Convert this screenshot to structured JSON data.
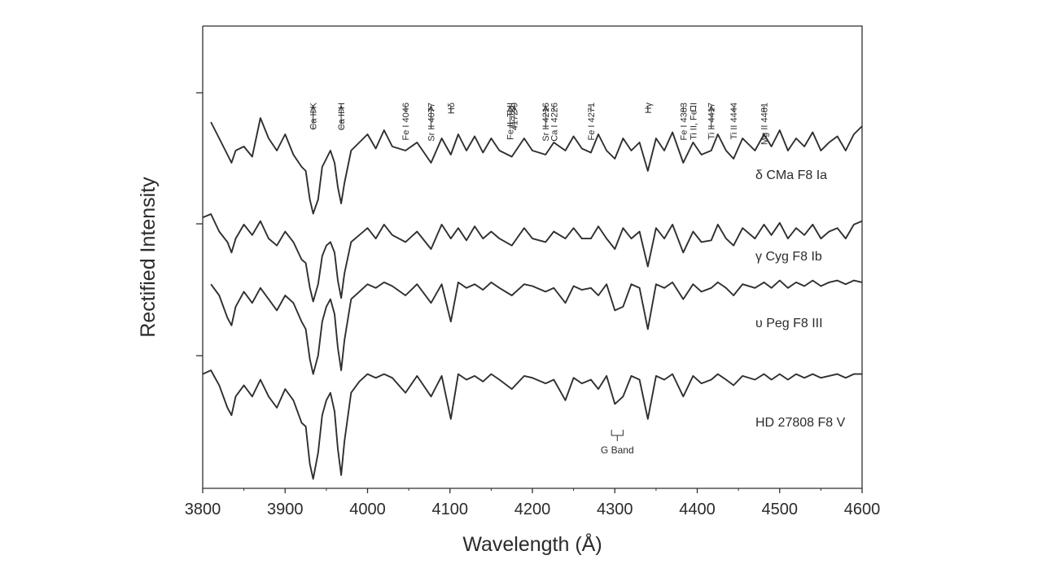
{
  "chart_data": {
    "type": "line",
    "title": "",
    "xlabel": "Wavelength (Å)",
    "ylabel": "Rectified Intensity",
    "xlim": [
      3800,
      4600
    ],
    "xticks": [
      3800,
      3900,
      4000,
      4100,
      4200,
      4300,
      4400,
      4500,
      4600
    ],
    "grid": false,
    "legend": "none",
    "line_color": "#2f2f2f",
    "series": [
      {
        "name": "δ CMa F8 Ia",
        "x": [
          3810,
          3820,
          3830,
          3835,
          3840,
          3850,
          3860,
          3870,
          3880,
          3890,
          3900,
          3910,
          3920,
          3925,
          3930,
          3934,
          3940,
          3945,
          3950,
          3955,
          3960,
          3964,
          3968,
          3972,
          3980,
          3990,
          4000,
          4010,
          4020,
          4030,
          4046,
          4060,
          4077,
          4090,
          4101,
          4110,
          4120,
          4130,
          4140,
          4150,
          4160,
          4175,
          4190,
          4200,
          4216,
          4226,
          4240,
          4250,
          4260,
          4271,
          4280,
          4290,
          4300,
          4310,
          4320,
          4330,
          4340,
          4350,
          4360,
          4370,
          4383,
          4395,
          4405,
          4417,
          4425,
          4435,
          4444,
          4455,
          4470,
          4481,
          4490,
          4500,
          4510,
          4520,
          4530,
          4540,
          4550,
          4560,
          4570,
          4580,
          4590,
          4600
        ],
        "y": [
          1.0,
          0.92,
          0.84,
          0.8,
          0.86,
          0.88,
          0.83,
          1.02,
          0.92,
          0.86,
          0.94,
          0.84,
          0.78,
          0.76,
          0.62,
          0.55,
          0.62,
          0.78,
          0.82,
          0.86,
          0.8,
          0.68,
          0.6,
          0.7,
          0.86,
          0.9,
          0.94,
          0.87,
          0.96,
          0.88,
          0.86,
          0.9,
          0.8,
          0.92,
          0.84,
          0.94,
          0.86,
          0.93,
          0.85,
          0.92,
          0.86,
          0.83,
          0.92,
          0.86,
          0.84,
          0.9,
          0.86,
          0.93,
          0.87,
          0.85,
          0.94,
          0.86,
          0.82,
          0.92,
          0.86,
          0.9,
          0.76,
          0.92,
          0.86,
          0.95,
          0.8,
          0.9,
          0.84,
          0.86,
          0.94,
          0.86,
          0.82,
          0.92,
          0.86,
          0.94,
          0.88,
          0.96,
          0.86,
          0.92,
          0.88,
          0.95,
          0.86,
          0.9,
          0.93,
          0.86,
          0.94,
          0.98
        ]
      },
      {
        "name": "γ Cyg F8 Ib",
        "x": [
          3800,
          3810,
          3820,
          3830,
          3835,
          3840,
          3850,
          3860,
          3870,
          3880,
          3890,
          3900,
          3910,
          3920,
          3925,
          3930,
          3934,
          3940,
          3945,
          3950,
          3955,
          3960,
          3964,
          3968,
          3972,
          3980,
          3990,
          4000,
          4010,
          4020,
          4030,
          4046,
          4060,
          4077,
          4090,
          4101,
          4110,
          4120,
          4130,
          4140,
          4150,
          4160,
          4175,
          4190,
          4200,
          4216,
          4226,
          4240,
          4250,
          4260,
          4271,
          4280,
          4290,
          4300,
          4310,
          4320,
          4330,
          4340,
          4350,
          4360,
          4370,
          4383,
          4395,
          4405,
          4417,
          4425,
          4435,
          4444,
          4455,
          4470,
          4481,
          4490,
          4500,
          4510,
          4520,
          4530,
          4540,
          4550,
          4560,
          4570,
          4580,
          4590,
          4600
        ],
        "y": [
          0.98,
          1.0,
          0.9,
          0.84,
          0.78,
          0.86,
          0.94,
          0.88,
          0.96,
          0.86,
          0.82,
          0.9,
          0.84,
          0.74,
          0.72,
          0.58,
          0.5,
          0.6,
          0.76,
          0.82,
          0.84,
          0.78,
          0.62,
          0.52,
          0.66,
          0.84,
          0.88,
          0.92,
          0.86,
          0.94,
          0.88,
          0.84,
          0.9,
          0.8,
          0.94,
          0.86,
          0.92,
          0.85,
          0.93,
          0.86,
          0.9,
          0.86,
          0.82,
          0.92,
          0.86,
          0.84,
          0.9,
          0.86,
          0.92,
          0.86,
          0.86,
          0.93,
          0.86,
          0.8,
          0.92,
          0.86,
          0.9,
          0.7,
          0.92,
          0.86,
          0.94,
          0.78,
          0.9,
          0.84,
          0.85,
          0.94,
          0.86,
          0.82,
          0.92,
          0.86,
          0.94,
          0.88,
          0.95,
          0.86,
          0.92,
          0.88,
          0.94,
          0.86,
          0.9,
          0.92,
          0.86,
          0.94,
          0.96
        ]
      },
      {
        "name": "υ Peg F8 III",
        "x": [
          3810,
          3820,
          3830,
          3835,
          3840,
          3850,
          3860,
          3870,
          3880,
          3890,
          3900,
          3910,
          3920,
          3925,
          3930,
          3934,
          3940,
          3945,
          3950,
          3955,
          3960,
          3964,
          3968,
          3972,
          3980,
          3990,
          4000,
          4010,
          4020,
          4030,
          4046,
          4060,
          4077,
          4090,
          4101,
          4110,
          4120,
          4130,
          4140,
          4150,
          4160,
          4175,
          4190,
          4200,
          4216,
          4226,
          4240,
          4250,
          4260,
          4271,
          4280,
          4290,
          4300,
          4310,
          4320,
          4330,
          4340,
          4350,
          4360,
          4370,
          4383,
          4395,
          4405,
          4417,
          4425,
          4435,
          4444,
          4455,
          4470,
          4481,
          4490,
          4500,
          4510,
          4520,
          4530,
          4540,
          4550,
          4560,
          4570,
          4580,
          4590,
          4600
        ],
        "y": [
          0.96,
          0.9,
          0.78,
          0.74,
          0.84,
          0.92,
          0.86,
          0.94,
          0.88,
          0.82,
          0.9,
          0.86,
          0.76,
          0.72,
          0.56,
          0.48,
          0.58,
          0.76,
          0.84,
          0.88,
          0.8,
          0.62,
          0.5,
          0.66,
          0.88,
          0.92,
          0.96,
          0.94,
          0.97,
          0.95,
          0.9,
          0.96,
          0.86,
          0.96,
          0.76,
          0.97,
          0.94,
          0.96,
          0.93,
          0.97,
          0.94,
          0.9,
          0.96,
          0.95,
          0.92,
          0.94,
          0.86,
          0.95,
          0.93,
          0.94,
          0.9,
          0.96,
          0.82,
          0.84,
          0.96,
          0.94,
          0.72,
          0.96,
          0.94,
          0.97,
          0.88,
          0.96,
          0.92,
          0.94,
          0.97,
          0.94,
          0.9,
          0.96,
          0.94,
          0.97,
          0.94,
          0.98,
          0.94,
          0.97,
          0.95,
          0.98,
          0.95,
          0.97,
          0.98,
          0.96,
          0.98,
          0.97
        ]
      },
      {
        "name": "HD 27808 F8 V",
        "x": [
          3800,
          3810,
          3820,
          3830,
          3835,
          3840,
          3850,
          3860,
          3870,
          3880,
          3890,
          3900,
          3910,
          3920,
          3925,
          3930,
          3934,
          3940,
          3945,
          3950,
          3955,
          3960,
          3964,
          3968,
          3972,
          3980,
          3990,
          4000,
          4010,
          4020,
          4030,
          4046,
          4060,
          4077,
          4090,
          4101,
          4110,
          4120,
          4130,
          4140,
          4150,
          4160,
          4175,
          4190,
          4200,
          4216,
          4226,
          4240,
          4250,
          4260,
          4271,
          4280,
          4290,
          4300,
          4310,
          4320,
          4330,
          4340,
          4350,
          4360,
          4370,
          4383,
          4395,
          4405,
          4417,
          4425,
          4435,
          4444,
          4455,
          4470,
          4481,
          4490,
          4500,
          4510,
          4520,
          4530,
          4540,
          4550,
          4560,
          4570,
          4580,
          4590,
          4600
        ],
        "y": [
          0.98,
          1.0,
          0.92,
          0.8,
          0.76,
          0.86,
          0.92,
          0.86,
          0.95,
          0.86,
          0.8,
          0.9,
          0.84,
          0.72,
          0.7,
          0.5,
          0.42,
          0.56,
          0.76,
          0.84,
          0.88,
          0.78,
          0.58,
          0.44,
          0.62,
          0.88,
          0.94,
          0.98,
          0.96,
          0.98,
          0.96,
          0.88,
          0.97,
          0.86,
          0.97,
          0.74,
          0.98,
          0.95,
          0.97,
          0.94,
          0.98,
          0.95,
          0.9,
          0.97,
          0.96,
          0.93,
          0.95,
          0.84,
          0.96,
          0.93,
          0.95,
          0.9,
          0.97,
          0.82,
          0.86,
          0.97,
          0.95,
          0.74,
          0.97,
          0.95,
          0.98,
          0.86,
          0.97,
          0.93,
          0.95,
          0.98,
          0.95,
          0.92,
          0.97,
          0.95,
          0.98,
          0.95,
          0.98,
          0.95,
          0.98,
          0.96,
          0.98,
          0.96,
          0.97,
          0.98,
          0.96,
          0.98,
          0.98
        ]
      }
    ],
    "annotations": [
      {
        "label": "Ca II K",
        "x": 3934,
        "marker": "arrow"
      },
      {
        "label": "Ca II H",
        "x": 3968,
        "marker": "arrow"
      },
      {
        "label": "Fe I 4046",
        "x": 4046,
        "marker": "tick"
      },
      {
        "label": "Sr II 4077",
        "x": 4077,
        "marker": "arrow"
      },
      {
        "label": "Hδ",
        "x": 4101,
        "marker": "tick"
      },
      {
        "label": "Fe II, Ti II",
        "x": 4173,
        "marker": "arrow"
      },
      {
        "label": "4172-9",
        "x": 4178,
        "marker": "arrow"
      },
      {
        "label": "Sr II 4216",
        "x": 4216,
        "marker": "arrow"
      },
      {
        "label": "Ca I 4226",
        "x": 4226,
        "marker": "tick"
      },
      {
        "label": "Fe I 4271",
        "x": 4271,
        "marker": "tick"
      },
      {
        "label": "Hγ",
        "x": 4340,
        "marker": "tick"
      },
      {
        "label": "Fe I 4383",
        "x": 4383,
        "marker": "tick"
      },
      {
        "label": "Ti II, Fe II",
        "x": 4395,
        "marker": "bracket"
      },
      {
        "label": "Ti II 4417",
        "x": 4417,
        "marker": "arrow"
      },
      {
        "label": "Ti II 4444",
        "x": 4444,
        "marker": "tick"
      },
      {
        "label": "Mg II 4481",
        "x": 4481,
        "marker": "tick"
      }
    ],
    "band": {
      "label": "G Band",
      "x_range": [
        4296,
        4310
      ]
    }
  }
}
